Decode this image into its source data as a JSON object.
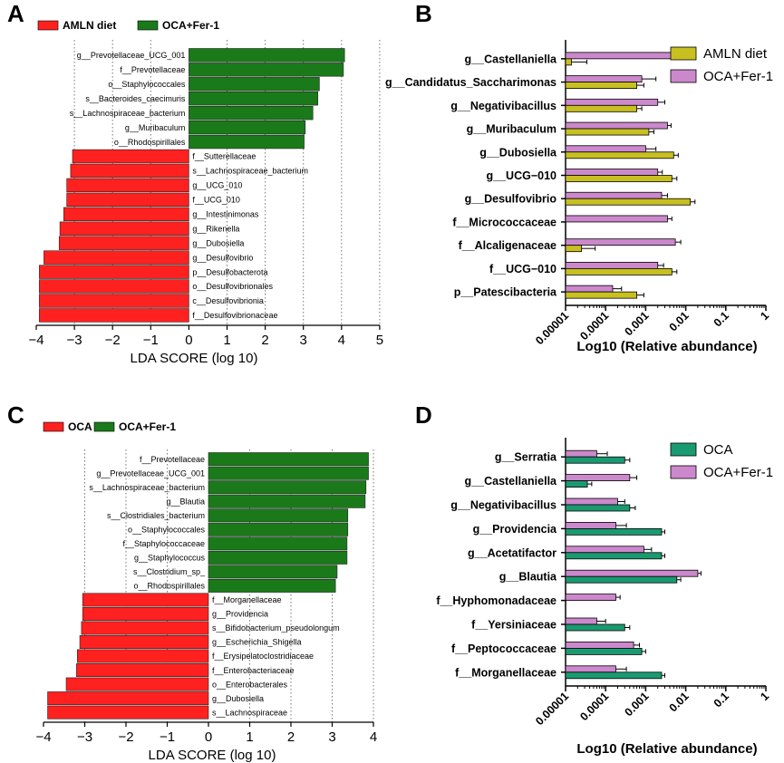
{
  "colors": {
    "red": "#ff2020",
    "green": "#1a7a1a",
    "olive": "#c8c020",
    "pink": "#cc88cc",
    "teal": "#1a9a70"
  },
  "chart_data": [
    {
      "id": "A",
      "panel": "A",
      "type": "bar",
      "orientation": "horizontal",
      "legend": [
        "AMLN diet",
        "OCA+Fer-1"
      ],
      "xlabel": "LDA SCORE (log 10)",
      "xlim": [
        -4,
        5
      ],
      "xticks": [
        -4,
        -3,
        -2,
        -1,
        0,
        1,
        2,
        3,
        4,
        5
      ],
      "bars": [
        {
          "label": "g__Prevotellaceae_UCG_001",
          "value": 4.08,
          "group": 1
        },
        {
          "label": "f__Prevotellaceae",
          "value": 4.05,
          "group": 1
        },
        {
          "label": "o__Staphylococcales",
          "value": 3.42,
          "group": 1
        },
        {
          "label": "s__Bacteroides_caecimuris",
          "value": 3.38,
          "group": 1
        },
        {
          "label": "s__Lachnospiraceae_bacterium",
          "value": 3.25,
          "group": 1
        },
        {
          "label": "g__Muribaculum",
          "value": 3.05,
          "group": 1
        },
        {
          "label": "o__Rhodospirillales",
          "value": 3.02,
          "group": 1
        },
        {
          "label": "f__Sutterellaceae",
          "value": -3.05,
          "group": 0
        },
        {
          "label": "s__Lachnospiraceae_bacterium",
          "value": -3.1,
          "group": 0
        },
        {
          "label": "g__UCG_010",
          "value": -3.2,
          "group": 0
        },
        {
          "label": "f__UCG_010",
          "value": -3.2,
          "group": 0
        },
        {
          "label": "g__Intestinimonas",
          "value": -3.28,
          "group": 0
        },
        {
          "label": "g__Rikenella",
          "value": -3.38,
          "group": 0
        },
        {
          "label": "g__Dubosiella",
          "value": -3.4,
          "group": 0
        },
        {
          "label": "g__Desulfovibrio",
          "value": -3.8,
          "group": 0
        },
        {
          "label": "p__Desulfobacterota",
          "value": -3.92,
          "group": 0
        },
        {
          "label": "o__Desulfovibrionales",
          "value": -3.92,
          "group": 0
        },
        {
          "label": "c__Desulfovibrionia",
          "value": -3.92,
          "group": 0
        },
        {
          "label": "f__Desulfovibrionaceae",
          "value": -3.92,
          "group": 0
        }
      ]
    },
    {
      "id": "B",
      "panel": "B",
      "type": "bar",
      "orientation": "horizontal",
      "scale": "log",
      "series": [
        {
          "name": "AMLN diet",
          "values": [
            1.4e-05,
            0.0006,
            0.0006,
            0.0012,
            0.005,
            0.0045,
            0.013,
            0,
            2.5e-05,
            0.0045,
            0.0006
          ],
          "errors": [
            2e-05,
            0.0003,
            0.0002,
            0.0004,
            0.0015,
            0.0015,
            0.004,
            0,
            3e-05,
            0.0015,
            0.0003
          ]
        },
        {
          "name": "OCA+Fer-1",
          "values": [
            0.0045,
            0.0008,
            0.002,
            0.0035,
            0.001,
            0.002,
            0.0025,
            0.0035,
            0.0055,
            0.002,
            0.00015
          ],
          "errors": [
            0.0015,
            0.001,
            0.001,
            0.0008,
            0.0008,
            0.0006,
            0.001,
            0.001,
            0.002,
            0.0008,
            0.0001
          ]
        }
      ],
      "categories": [
        "g__Castellaniella",
        "g__Candidatus_Saccharimonas",
        "g__Negativibacillus",
        "g__Muribaculum",
        "g__Dubosiella",
        "g__UCG−010",
        "g__Desulfovibrio",
        "f__Micrococcaceae",
        "f__Alcaligenaceae",
        "f__UCG−010",
        "p__Patescibacteria"
      ],
      "xticks": [
        "0.00001",
        "0.0001",
        "0.001",
        "0.01",
        "0.1",
        "1"
      ],
      "xlim": [
        1e-05,
        1
      ],
      "xlabel": "Log10 (Relative abundance)"
    },
    {
      "id": "C",
      "panel": "C",
      "type": "bar",
      "orientation": "horizontal",
      "legend": [
        "OCA",
        "OCA+Fer-1"
      ],
      "xlabel": "LDA SCORE (log 10)",
      "xlim": [
        -4,
        4
      ],
      "xticks": [
        -4,
        -3,
        -2,
        -1,
        0,
        1,
        2,
        3,
        4
      ],
      "bars": [
        {
          "label": "f__Prevotellaceae",
          "value": 3.88,
          "group": 1
        },
        {
          "label": "g__Prevotellaceae_UCG_001",
          "value": 3.88,
          "group": 1
        },
        {
          "label": "s__Lachnospiraceae_bacterium",
          "value": 3.82,
          "group": 1
        },
        {
          "label": "g__Blautia",
          "value": 3.8,
          "group": 1
        },
        {
          "label": "s__Clostridiales_bacterium",
          "value": 3.38,
          "group": 1
        },
        {
          "label": "o__Staphylococcales",
          "value": 3.38,
          "group": 1
        },
        {
          "label": "f__Staphylococcaceae",
          "value": 3.36,
          "group": 1
        },
        {
          "label": "g__Staphylococcus",
          "value": 3.36,
          "group": 1
        },
        {
          "label": "s__Clostridium_sp_",
          "value": 3.12,
          "group": 1
        },
        {
          "label": "o__Rhodospirillales",
          "value": 3.08,
          "group": 1
        },
        {
          "label": "f__Morganellaceae",
          "value": -3.05,
          "group": 0
        },
        {
          "label": "g__Providencia",
          "value": -3.05,
          "group": 0
        },
        {
          "label": "s__Bifidobacterium_pseudolongum",
          "value": -3.08,
          "group": 0
        },
        {
          "label": "g__Escherichia_Shigella",
          "value": -3.12,
          "group": 0
        },
        {
          "label": "f__Erysipelatoclostridiaceae",
          "value": -3.18,
          "group": 0
        },
        {
          "label": "f__Enterobacteriaceae",
          "value": -3.2,
          "group": 0
        },
        {
          "label": "o__Enterobacterales",
          "value": -3.45,
          "group": 0
        },
        {
          "label": "g__Dubosiella",
          "value": -3.9,
          "group": 0
        },
        {
          "label": "s__Lachnospiraceae",
          "value": -3.9,
          "group": 0
        }
      ]
    },
    {
      "id": "D",
      "panel": "D",
      "type": "bar",
      "orientation": "horizontal",
      "scale": "log",
      "series": [
        {
          "name": "OCA",
          "values": [
            0.0003,
            3.5e-05,
            0.0004,
            0.0025,
            0.0025,
            0.006,
            0,
            0.0003,
            0.0008,
            0.0025
          ],
          "errors": [
            0.0001,
            1e-05,
            0.00015,
            0.0005,
            0.0005,
            0.0015,
            0,
            0.0001,
            0.0002,
            0.0005
          ]
        },
        {
          "name": "OCA+Fer-1",
          "values": [
            6e-05,
            0.0004,
            0.0002,
            0.00018,
            0.0009,
            0.02,
            0.00018,
            6e-05,
            0.0005,
            0.00018
          ],
          "errors": [
            5e-05,
            0.0002,
            0.0001,
            0.00015,
            0.0005,
            0.004,
            5e-05,
            4e-05,
            0.0002,
            0.00015
          ]
        }
      ],
      "categories": [
        "g__Serratia",
        "g__Castellaniella",
        "g__Negativibacillus",
        "g__Providencia",
        "g__Acetatifactor",
        "g__Blautia",
        "f__Hyphomonadaceae",
        "f__Yersiniaceae",
        "f__Peptococcaceae",
        "f__Morganellaceae"
      ],
      "xticks": [
        "0.00001",
        "0.0001",
        "0.001",
        "0.01",
        "0.1",
        "1"
      ],
      "xlim": [
        1e-05,
        1
      ],
      "xlabel": "Log10 (Relative abundance)"
    }
  ]
}
